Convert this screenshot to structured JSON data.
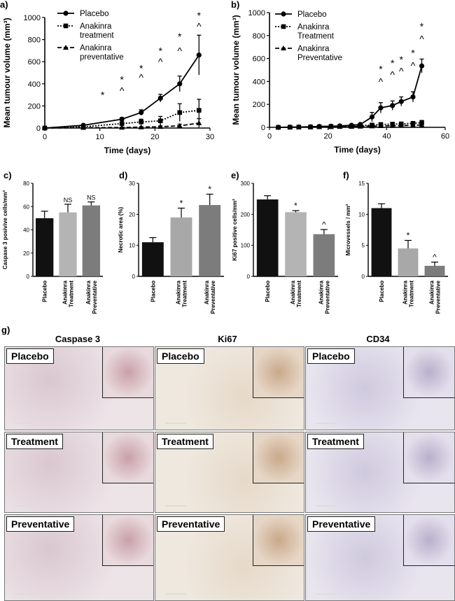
{
  "panel_letters": {
    "a": "a)",
    "b": "b)",
    "c": "c)",
    "d": "d)",
    "e": "e)",
    "f": "f)",
    "g": "g)"
  },
  "chart_data": [
    {
      "id": "a",
      "type": "line",
      "ylabel": "Mean tumour volume (mm³)",
      "xlabel": "Time (days)",
      "xlim": [
        0,
        30
      ],
      "ylim": [
        0,
        1000
      ],
      "xticks": [
        0,
        10,
        20,
        30
      ],
      "yticks": [
        0,
        200,
        400,
        600,
        800,
        1000
      ],
      "legend": [
        "Placebo",
        "Anakinra treatment",
        "Anakinra preventative"
      ],
      "legend_lines": [
        [
          "Placebo"
        ],
        [
          "Anakinra",
          "treatment"
        ],
        [
          "Anakinra",
          "preventative"
        ]
      ],
      "series": [
        {
          "name": "Placebo",
          "style": "solid",
          "marker": "circle",
          "x": [
            0,
            7,
            14,
            17.5,
            21,
            24.5,
            28
          ],
          "y": [
            0,
            25,
            80,
            140,
            270,
            400,
            660
          ],
          "err": [
            0,
            8,
            15,
            25,
            35,
            70,
            180
          ]
        },
        {
          "name": "Anakinra treatment",
          "style": "dotted",
          "marker": "square",
          "x": [
            0,
            7,
            14,
            17.5,
            21,
            24.5,
            28
          ],
          "y": [
            0,
            12,
            40,
            55,
            65,
            140,
            160
          ],
          "err": [
            0,
            5,
            15,
            25,
            40,
            80,
            100
          ]
        },
        {
          "name": "Anakinra preventative",
          "style": "dashed",
          "marker": "triangle",
          "x": [
            0,
            7,
            14,
            17.5,
            21,
            24.5,
            28
          ],
          "y": [
            0,
            3,
            5,
            8,
            12,
            20,
            45
          ],
          "err": [
            0,
            2,
            3,
            5,
            8,
            15,
            40
          ]
        }
      ],
      "annotations": [
        {
          "x": 10.5,
          "y": 300,
          "text": "*"
        },
        {
          "x": 14,
          "y": 440,
          "text": "*"
        },
        {
          "x": 14,
          "y": 340,
          "text": "^"
        },
        {
          "x": 17.5,
          "y": 540,
          "text": "*"
        },
        {
          "x": 17.5,
          "y": 460,
          "text": "^"
        },
        {
          "x": 21,
          "y": 700,
          "text": "*"
        },
        {
          "x": 21,
          "y": 600,
          "text": "^"
        },
        {
          "x": 24.5,
          "y": 830,
          "text": "*"
        },
        {
          "x": 24.5,
          "y": 700,
          "text": "^"
        },
        {
          "x": 28,
          "y": 1020,
          "text": "*"
        },
        {
          "x": 28,
          "y": 920,
          "text": "^"
        }
      ]
    },
    {
      "id": "b",
      "type": "line",
      "ylabel": "Mean tumour volume (mm³)",
      "xlabel": "Time (days)",
      "xlim": [
        0,
        60
      ],
      "ylim": [
        0,
        1000
      ],
      "xticks": [
        0,
        20,
        40,
        60
      ],
      "yticks": [
        0,
        200,
        400,
        600,
        800,
        1000
      ],
      "legend": [
        "Placebo",
        "Anakinra Treatment",
        "Anakinra Preventative"
      ],
      "legend_lines": [
        [
          "Placebo"
        ],
        [
          "Anakinra",
          "Treatment"
        ],
        [
          "Anakinra",
          "Preventative"
        ]
      ],
      "series": [
        {
          "name": "Placebo",
          "style": "solid",
          "marker": "circle",
          "x": [
            3,
            7,
            10,
            14,
            17,
            21,
            24,
            28,
            31,
            35,
            38,
            42,
            45,
            49,
            52
          ],
          "y": [
            0,
            2,
            3,
            5,
            8,
            10,
            12,
            18,
            25,
            90,
            170,
            190,
            225,
            265,
            535
          ],
          "err": [
            0,
            2,
            2,
            3,
            3,
            4,
            5,
            6,
            8,
            40,
            45,
            40,
            40,
            45,
            60
          ]
        },
        {
          "name": "Anakinra Treatment",
          "style": "dotted",
          "marker": "square",
          "x": [
            3,
            7,
            10,
            14,
            17,
            21,
            24,
            28,
            31,
            35,
            38,
            42,
            45,
            49,
            52
          ],
          "y": [
            0,
            1,
            2,
            3,
            5,
            7,
            8,
            10,
            15,
            20,
            25,
            28,
            30,
            35,
            40
          ],
          "err": [
            0,
            1,
            2,
            2,
            3,
            3,
            4,
            5,
            6,
            8,
            10,
            10,
            12,
            15,
            20
          ]
        },
        {
          "name": "Anakinra Preventative",
          "style": "dashed",
          "marker": "triangle",
          "x": [
            3,
            7,
            10,
            14,
            17,
            21,
            24,
            28,
            31,
            35,
            38,
            42,
            45,
            49,
            52
          ],
          "y": [
            0,
            1,
            1,
            2,
            3,
            4,
            5,
            6,
            8,
            10,
            12,
            14,
            15,
            18,
            20
          ],
          "err": [
            0,
            1,
            1,
            1,
            2,
            2,
            2,
            3,
            3,
            4,
            5,
            6,
            6,
            8,
            10
          ]
        }
      ],
      "annotations": [
        {
          "x": 38,
          "y": 510,
          "text": "*"
        },
        {
          "x": 38,
          "y": 400,
          "text": "^"
        },
        {
          "x": 42,
          "y": 560,
          "text": "*"
        },
        {
          "x": 42,
          "y": 460,
          "text": "^"
        },
        {
          "x": 45,
          "y": 590,
          "text": "*"
        },
        {
          "x": 45,
          "y": 490,
          "text": "^"
        },
        {
          "x": 49,
          "y": 650,
          "text": "*"
        },
        {
          "x": 49,
          "y": 540,
          "text": "^"
        },
        {
          "x": 52,
          "y": 880,
          "text": "*"
        },
        {
          "x": 52,
          "y": 770,
          "text": "^"
        }
      ]
    },
    {
      "id": "c",
      "type": "bar",
      "ylabel": "Caspase 3 posivive cells/mm²",
      "ylim": [
        0,
        80
      ],
      "yticks": [
        0,
        20,
        40,
        60,
        80
      ],
      "categories": [
        "Placebo",
        "Anakinra Treatment",
        "Anakinra Preventative"
      ],
      "category_lines": [
        [
          "Placebo"
        ],
        [
          "Anakinra",
          "Treatment"
        ],
        [
          "Anakinra",
          "Preventative"
        ]
      ],
      "values": [
        50,
        55,
        61
      ],
      "err": [
        6,
        7,
        3
      ],
      "colors": [
        "#111111",
        "#b4b4b4",
        "#7c7c7c"
      ],
      "sig": [
        "",
        "NS",
        "NS"
      ]
    },
    {
      "id": "d",
      "type": "bar",
      "ylabel": "Necrotic area (%)",
      "ylim": [
        0,
        30
      ],
      "yticks": [
        0,
        10,
        20,
        30
      ],
      "categories": [
        "Placebo",
        "Anakinra Treatment",
        "Anakinra Preventative"
      ],
      "category_lines": [
        [
          "Placebo"
        ],
        [
          "Anakinra",
          "Treatment"
        ],
        [
          "Anakinra",
          "Preventative"
        ]
      ],
      "values": [
        11,
        19,
        23
      ],
      "err": [
        1.5,
        3,
        3.5
      ],
      "colors": [
        "#111111",
        "#a8a8a8",
        "#7c7c7c"
      ],
      "sig": [
        "",
        "*",
        "*"
      ]
    },
    {
      "id": "e",
      "type": "bar",
      "ylabel": "Ki67 positive cells/mm²",
      "ylim": [
        0,
        300
      ],
      "yticks": [
        0,
        100,
        200,
        300
      ],
      "categories": [
        "Placebo",
        "Anakinra Treatment",
        "Anakinra Preventative"
      ],
      "category_lines": [
        [
          "Placebo"
        ],
        [
          "Anakinra",
          "Treatment"
        ],
        [
          "Anakinra",
          "Preventative"
        ]
      ],
      "values": [
        248,
        207,
        136
      ],
      "err": [
        12,
        5,
        15
      ],
      "colors": [
        "#111111",
        "#b4b4b4",
        "#7c7c7c"
      ],
      "sig": [
        "",
        "*",
        "^"
      ]
    },
    {
      "id": "f",
      "type": "bar",
      "ylabel": "Microvessels / mm²",
      "ylim": [
        0,
        15
      ],
      "yticks": [
        0,
        5,
        10,
        15
      ],
      "categories": [
        "Placebo",
        "Anakinra Treatment",
        "Anakinra Preventative"
      ],
      "category_lines": [
        [
          "Placebo"
        ],
        [
          "Anakinra",
          "Treatment"
        ],
        [
          "Anakinra",
          "Preventative"
        ]
      ],
      "values": [
        11,
        4.5,
        1.7
      ],
      "err": [
        0.7,
        1.3,
        0.6
      ],
      "colors": [
        "#111111",
        "#a8a8a8",
        "#7c7c7c"
      ],
      "sig": [
        "",
        "*",
        "^"
      ]
    }
  ],
  "micrographs": {
    "columns": [
      "Caspase 3",
      "Ki67",
      "CD34"
    ],
    "rows": [
      "Placebo",
      "Treatment",
      "Preventative"
    ]
  },
  "colors": {
    "series": "#000000",
    "tile_bg": "#e7dde2",
    "tile_bg_alt": "#ddd9e6"
  }
}
